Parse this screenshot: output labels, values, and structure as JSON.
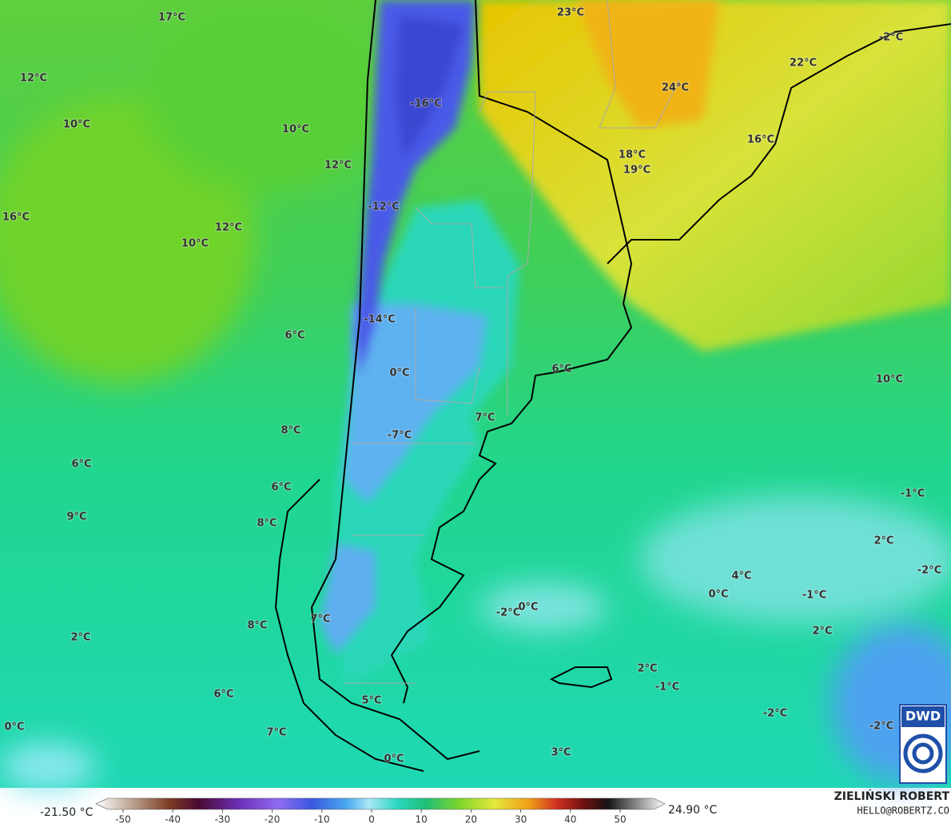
{
  "map": {
    "labels": [
      "17°C",
      "23°C",
      "-2°C",
      "12°C",
      "22°C",
      "24°C",
      "-16°C",
      "10°C",
      "10°C",
      "16°C",
      "18°C",
      "19°C",
      "12°C",
      "-12°C",
      "16°C",
      "12°C",
      "10°C",
      "-14°C",
      "6°C",
      "0°C",
      "6°C",
      "10°C",
      "7°C",
      "8°C",
      "-7°C",
      "6°C",
      "6°C",
      "-1°C",
      "9°C",
      "8°C",
      "2°C",
      "-2°C",
      "4°C",
      "0°C",
      "-1°C",
      "-2°C",
      "0°C",
      "7°C",
      "8°C",
      "2°C",
      "2°C",
      "2°C",
      "-1°C",
      "6°C",
      "5°C",
      "-2°C",
      "0°C",
      "7°C",
      "-2°C",
      "3°C",
      "0°C"
    ],
    "logo": "DWD"
  },
  "colorbar": {
    "min_label": "-21.50 °C",
    "max_label": "24.90 °C",
    "ticks": [
      -50,
      -40,
      -30,
      -20,
      -10,
      0,
      10,
      20,
      30,
      40,
      50
    ]
  },
  "credit": {
    "name": "ZIELIŃSKI ROBERT",
    "email": "HELLO@ROBERTZ.CO"
  }
}
